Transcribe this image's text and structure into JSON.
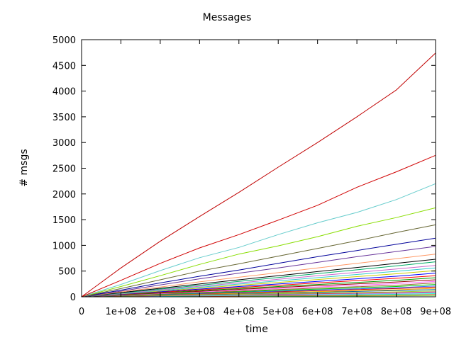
{
  "chart_data": {
    "type": "line",
    "title": "Messages",
    "xlabel": "time",
    "ylabel": "# msgs",
    "xlim": [
      0,
      900000000
    ],
    "ylim": [
      0,
      5000
    ],
    "x_ticks": [
      0,
      100000000,
      200000000,
      300000000,
      400000000,
      500000000,
      600000000,
      700000000,
      800000000,
      900000000
    ],
    "x_tick_labels": [
      "0",
      "1e+08",
      "2e+08",
      "3e+08",
      "4e+08",
      "5e+08",
      "6e+08",
      "7e+08",
      "8e+08",
      "9e+08"
    ],
    "y_ticks": [
      0,
      500,
      1000,
      1500,
      2000,
      2500,
      3000,
      3500,
      4000,
      4500,
      5000
    ],
    "y_tick_labels": [
      "0",
      "500",
      "1000",
      "1500",
      "2000",
      "2500",
      "3000",
      "3500",
      "4000",
      "4500",
      "5000"
    ],
    "grid": false,
    "legend": "none",
    "x": [
      0,
      100000000,
      200000000,
      300000000,
      400000000,
      500000000,
      600000000,
      700000000,
      800000000,
      900000000
    ],
    "series": [
      {
        "color": "#c00000",
        "values": [
          0,
          560,
          1080,
          1560,
          2030,
          2520,
          3000,
          3500,
          4020,
          4740
        ]
      },
      {
        "color": "#d00000",
        "values": [
          0,
          320,
          650,
          950,
          1210,
          1490,
          1780,
          2130,
          2430,
          2750
        ]
      },
      {
        "color": "#66cccc",
        "values": [
          0,
          240,
          510,
          760,
          960,
          1210,
          1440,
          1640,
          1890,
          2200
        ]
      },
      {
        "color": "#88dd00",
        "values": [
          0,
          200,
          410,
          630,
          830,
          990,
          1170,
          1370,
          1540,
          1730
        ]
      },
      {
        "color": "#666633",
        "values": [
          0,
          160,
          330,
          500,
          640,
          790,
          940,
          1090,
          1250,
          1400
        ]
      },
      {
        "color": "#000099",
        "values": [
          0,
          130,
          270,
          400,
          520,
          650,
          780,
          900,
          1020,
          1140
        ]
      },
      {
        "color": "#663399",
        "values": [
          0,
          110,
          230,
          350,
          460,
          560,
          670,
          780,
          880,
          980
        ]
      },
      {
        "color": "#ff9966",
        "values": [
          0,
          95,
          190,
          290,
          380,
          470,
          560,
          650,
          740,
          830
        ]
      },
      {
        "color": "#000000",
        "values": [
          0,
          82,
          165,
          250,
          330,
          410,
          490,
          570,
          650,
          730
        ]
      },
      {
        "color": "#00aa66",
        "values": [
          0,
          75,
          150,
          225,
          300,
          375,
          450,
          525,
          600,
          680
        ]
      },
      {
        "color": "#cc66cc",
        "values": [
          0,
          68,
          135,
          205,
          270,
          340,
          410,
          475,
          540,
          610
        ]
      },
      {
        "color": "#33cccc",
        "values": [
          0,
          62,
          124,
          186,
          248,
          310,
          372,
          434,
          496,
          560
        ]
      },
      {
        "color": "#cccc00",
        "values": [
          0,
          56,
          112,
          168,
          224,
          280,
          336,
          392,
          448,
          510
        ]
      },
      {
        "color": "#0000ff",
        "values": [
          0,
          50,
          100,
          150,
          200,
          250,
          300,
          350,
          400,
          460
        ]
      },
      {
        "color": "#ff0000",
        "values": [
          0,
          45,
          90,
          135,
          180,
          225,
          270,
          315,
          360,
          410
        ]
      },
      {
        "color": "#009900",
        "values": [
          0,
          40,
          80,
          120,
          160,
          200,
          240,
          280,
          320,
          370
        ]
      },
      {
        "color": "#990000",
        "values": [
          0,
          36,
          72,
          108,
          144,
          180,
          216,
          252,
          288,
          330
        ]
      },
      {
        "color": "#ff66ff",
        "values": [
          0,
          32,
          64,
          96,
          128,
          160,
          192,
          224,
          256,
          300
        ]
      },
      {
        "color": "#996633",
        "values": [
          0,
          28,
          56,
          84,
          112,
          140,
          168,
          196,
          224,
          270
        ]
      },
      {
        "color": "#00cc00",
        "values": [
          0,
          25,
          50,
          75,
          100,
          125,
          150,
          175,
          200,
          240
        ]
      },
      {
        "color": "#3366ff",
        "values": [
          0,
          22,
          44,
          66,
          88,
          110,
          132,
          154,
          176,
          210
        ]
      },
      {
        "color": "#cc0000",
        "values": [
          0,
          20,
          40,
          60,
          80,
          100,
          120,
          140,
          160,
          190
        ]
      },
      {
        "color": "#ffaa00",
        "values": [
          0,
          17,
          34,
          51,
          68,
          85,
          102,
          119,
          136,
          165
        ]
      },
      {
        "color": "#006699",
        "values": [
          0,
          15,
          30,
          45,
          60,
          75,
          90,
          105,
          120,
          140
        ]
      },
      {
        "color": "#99cc33",
        "values": [
          0,
          12,
          24,
          36,
          48,
          60,
          72,
          84,
          96,
          115
        ]
      },
      {
        "color": "#cc3366",
        "values": [
          0,
          10,
          20,
          30,
          40,
          50,
          60,
          70,
          80,
          95
        ]
      },
      {
        "color": "#9999ff",
        "values": [
          0,
          8,
          16,
          24,
          32,
          40,
          48,
          56,
          64,
          78
        ]
      },
      {
        "color": "#00ffcc",
        "values": [
          0,
          6,
          12,
          18,
          24,
          30,
          36,
          42,
          48,
          60
        ]
      },
      {
        "color": "#ff3300",
        "values": [
          0,
          4,
          8,
          12,
          16,
          20,
          24,
          28,
          32,
          42
        ]
      },
      {
        "color": "#66ff66",
        "values": [
          0,
          2,
          4,
          6,
          8,
          10,
          12,
          14,
          16,
          25
        ]
      }
    ]
  }
}
